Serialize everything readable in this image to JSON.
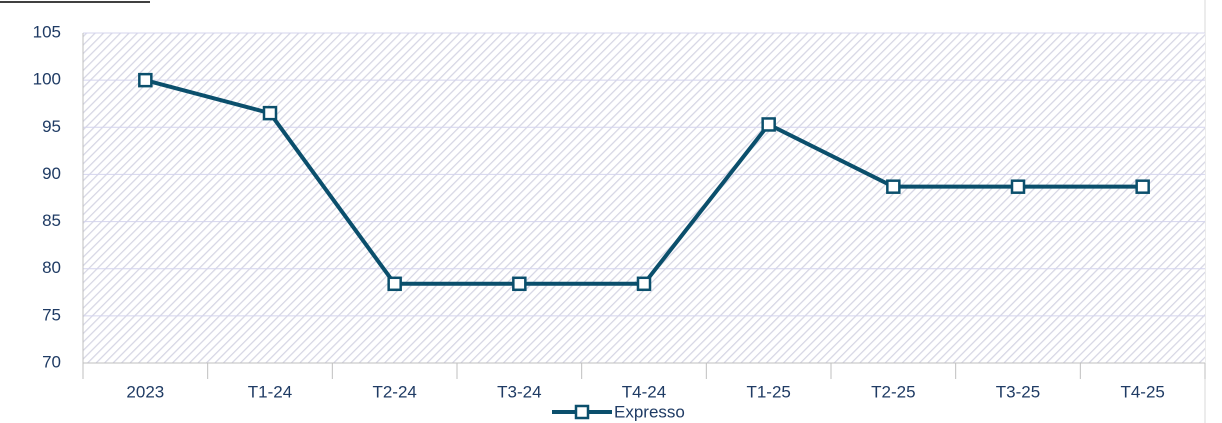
{
  "chart_data": {
    "type": "line",
    "categories": [
      "2023",
      "T1-24",
      "T2-24",
      "T3-24",
      "T4-24",
      "T1-25",
      "T2-25",
      "T3-25",
      "T4-25"
    ],
    "series": [
      {
        "name": "Expresso",
        "color": "#0b4f6c",
        "values": [
          100,
          96.5,
          78.4,
          78.4,
          78.4,
          95.3,
          88.7,
          88.7,
          88.7
        ]
      }
    ],
    "ylim": [
      70,
      105
    ],
    "yticks": [
      70,
      75,
      80,
      85,
      90,
      95,
      100,
      105
    ],
    "grid": true,
    "legend": "bottom"
  }
}
